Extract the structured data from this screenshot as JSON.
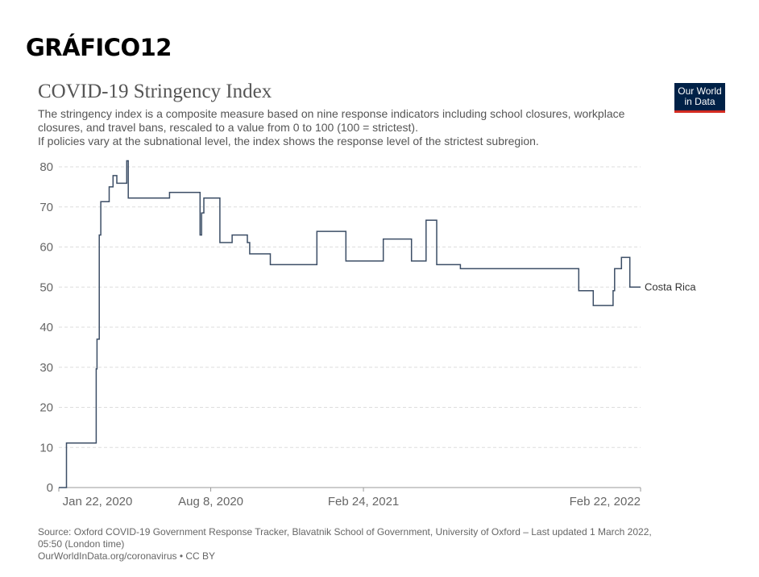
{
  "heading": "GRÁFICO12",
  "logo": {
    "line1": "Our World",
    "line2": "in Data"
  },
  "chart_data": {
    "type": "line",
    "title": "COVID-19 Stringency Index",
    "subtitle": "The stringency index is a composite measure based on nine response indicators including school closures, workplace closures, and travel bans, rescaled to a value from 0 to 100 (100 = strictest).\n If policies vary at the subnational level, the index shows the response level of the strictest subregion.",
    "ylim": [
      0,
      80
    ],
    "y_ticks": [
      0,
      10,
      20,
      30,
      40,
      50,
      60,
      70,
      80
    ],
    "x_ticks": [
      "Jan 22, 2020",
      "Aug 8, 2020",
      "Feb 24, 2021",
      "Feb 22, 2022"
    ],
    "xlim": [
      "2020-01-22",
      "2022-02-22"
    ],
    "grid": "horizontal",
    "series": [
      {
        "name": "Costa Rica",
        "color": "#3c4e66",
        "points": [
          [
            "2020-01-22",
            0
          ],
          [
            "2020-02-01",
            11.1
          ],
          [
            "2020-03-10",
            11.1
          ],
          [
            "2020-03-11",
            29.6
          ],
          [
            "2020-03-12",
            37
          ],
          [
            "2020-03-15",
            63
          ],
          [
            "2020-03-17",
            71.3
          ],
          [
            "2020-03-28",
            75
          ],
          [
            "2020-04-02",
            77.8
          ],
          [
            "2020-04-07",
            75.9
          ],
          [
            "2020-04-20",
            81.5
          ],
          [
            "2020-04-22",
            72.2
          ],
          [
            "2020-06-15",
            73.6
          ],
          [
            "2020-07-25",
            63
          ],
          [
            "2020-07-27",
            68.5
          ],
          [
            "2020-07-30",
            72.2
          ],
          [
            "2020-08-20",
            61.1
          ],
          [
            "2020-09-05",
            63
          ],
          [
            "2020-09-25",
            61.1
          ],
          [
            "2020-09-28",
            58.3
          ],
          [
            "2020-10-25",
            55.6
          ],
          [
            "2020-12-25",
            63.9
          ],
          [
            "2021-02-01",
            56.5
          ],
          [
            "2021-03-22",
            62
          ],
          [
            "2021-04-28",
            56.5
          ],
          [
            "2021-05-17",
            66.7
          ],
          [
            "2021-05-31",
            55.6
          ],
          [
            "2021-07-01",
            54.6
          ],
          [
            "2021-12-03",
            49.1
          ],
          [
            "2021-12-22",
            45.4
          ],
          [
            "2022-01-17",
            49.1
          ],
          [
            "2022-01-19",
            54.6
          ],
          [
            "2022-01-28",
            57.4
          ],
          [
            "2022-02-08",
            50
          ],
          [
            "2022-02-22",
            50
          ]
        ]
      }
    ]
  },
  "footer": {
    "line1": "Source: Oxford COVID-19 Government Response Tracker, Blavatnik School of Government, University of Oxford – Last updated 1 March 2022,",
    "line2": "05:50 (London time)",
    "line3": "OurWorldInData.org/coronavirus • CC BY"
  }
}
